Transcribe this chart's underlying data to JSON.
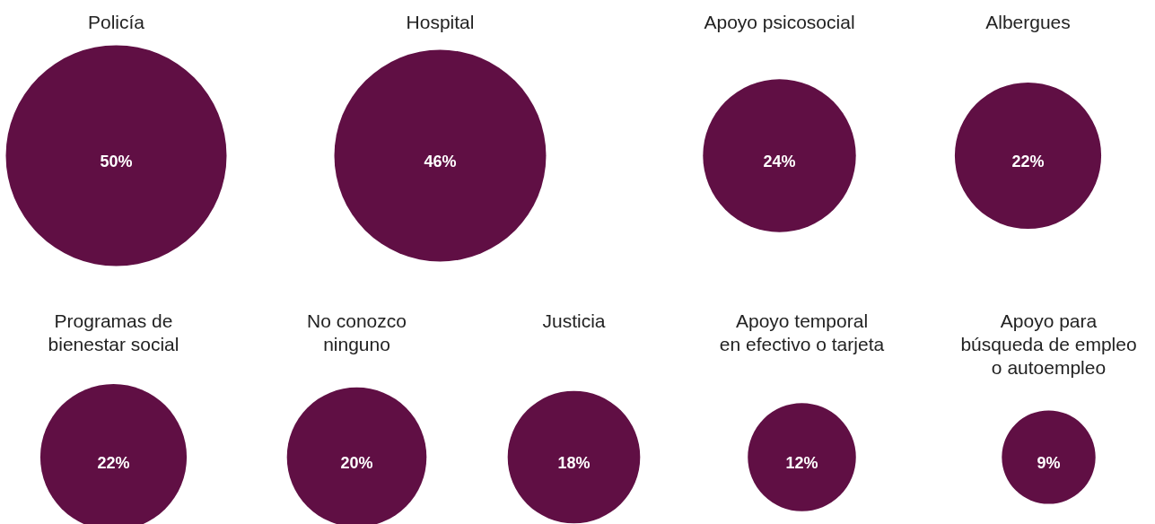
{
  "chart_data": {
    "type": "other",
    "categories": [
      "Policía",
      "Hospital",
      "Apoyo psicosocial",
      "Albergues",
      "Programas de\nbienestar social",
      "No conozco\nninguno",
      "Justicia",
      "Apoyo temporal\nen efectivo o tarjeta",
      "Apoyo para\nbúsqueda de empleo\no autoempleo"
    ],
    "values": [
      50,
      46,
      24,
      22,
      22,
      20,
      18,
      12,
      9
    ],
    "color": "#600f44",
    "value_labels": [
      "50%",
      "46%",
      "24%",
      "22%",
      "22%",
      "20%",
      "18%",
      "12%",
      "9%"
    ]
  }
}
